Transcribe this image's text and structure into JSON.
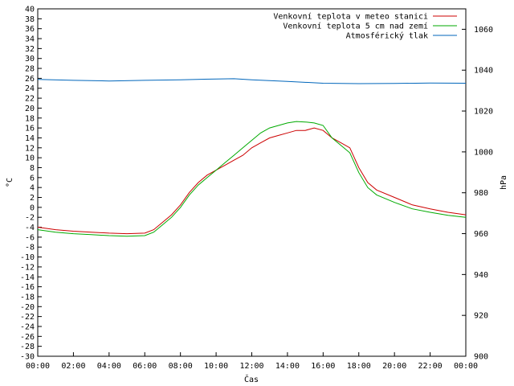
{
  "chart_data": {
    "type": "line",
    "xlabel": "Čas",
    "ylabel_left": "°C",
    "ylabel_right": "hPa",
    "xlim": [
      0,
      24
    ],
    "ylim_left": [
      -30,
      40
    ],
    "ylim_right": [
      900,
      1070
    ],
    "x_ticks": [
      "00:00",
      "02:00",
      "04:00",
      "06:00",
      "08:00",
      "10:00",
      "12:00",
      "14:00",
      "16:00",
      "18:00",
      "20:00",
      "22:00",
      "00:00"
    ],
    "y_ticks_left": [
      40,
      38,
      36,
      34,
      32,
      30,
      28,
      26,
      24,
      22,
      20,
      18,
      16,
      14,
      12,
      10,
      8,
      6,
      4,
      2,
      0,
      -2,
      -4,
      -6,
      -8,
      -10,
      -12,
      -14,
      -16,
      -18,
      -20,
      -22,
      -24,
      -26,
      -28,
      -30
    ],
    "y_ticks_right": [
      1060,
      1040,
      1020,
      1000,
      980,
      960,
      940,
      920,
      900
    ],
    "legend_position": "top-right",
    "series": [
      {
        "name": "Venkovní teplota v meteo stanici",
        "axis": "left",
        "color": "#cc0000",
        "x": [
          0,
          1,
          2,
          3,
          4,
          5,
          6,
          6.5,
          7,
          7.5,
          8,
          8.5,
          9,
          9.5,
          10,
          10.5,
          11,
          11.5,
          12,
          12.5,
          13,
          13.5,
          14,
          14.5,
          15,
          15.5,
          16,
          16.5,
          17,
          17.5,
          18,
          18.5,
          19,
          20,
          21,
          22,
          23,
          24
        ],
        "y": [
          -4,
          -4.5,
          -4.8,
          -5,
          -5.2,
          -5.3,
          -5.2,
          -4.5,
          -3,
          -1.5,
          0.5,
          3,
          5,
          6.5,
          7.5,
          8.5,
          9.5,
          10.5,
          12,
          13,
          14,
          14.5,
          15,
          15.5,
          15.5,
          16,
          15.5,
          14,
          13,
          12,
          8,
          5,
          3.5,
          2,
          0.5,
          -0.3,
          -1,
          -1.5
        ]
      },
      {
        "name": "Venkovní teplota 5 cm nad zemí",
        "axis": "left",
        "color": "#00aa00",
        "x": [
          0,
          1,
          2,
          3,
          4,
          5,
          6,
          6.5,
          7,
          7.5,
          8,
          8.5,
          9,
          9.5,
          10,
          10.5,
          11,
          11.5,
          12,
          12.5,
          13,
          13.5,
          14,
          14.5,
          15,
          15.5,
          16,
          16.5,
          17,
          17.5,
          18,
          18.5,
          19,
          20,
          21,
          22,
          23,
          24
        ],
        "y": [
          -4.5,
          -5,
          -5.3,
          -5.5,
          -5.7,
          -5.8,
          -5.7,
          -5,
          -3.5,
          -2,
          0,
          2.5,
          4.5,
          6,
          7.5,
          9,
          10.5,
          12,
          13.5,
          15,
          16,
          16.5,
          17,
          17.3,
          17.2,
          17,
          16.5,
          14,
          12.5,
          11,
          7,
          4,
          2.5,
          1,
          -0.3,
          -1,
          -1.6,
          -2
        ]
      },
      {
        "name": "Atmosférický tlak",
        "axis": "right",
        "color": "#0066bb",
        "x": [
          0,
          2,
          4,
          6,
          8,
          10,
          11,
          12,
          14,
          16,
          18,
          20,
          22,
          24
        ],
        "y": [
          1035.5,
          1035,
          1034.7,
          1035,
          1035.3,
          1035.7,
          1035.8,
          1035.3,
          1034.5,
          1033.6,
          1033.4,
          1033.5,
          1033.7,
          1033.6
        ]
      }
    ]
  }
}
